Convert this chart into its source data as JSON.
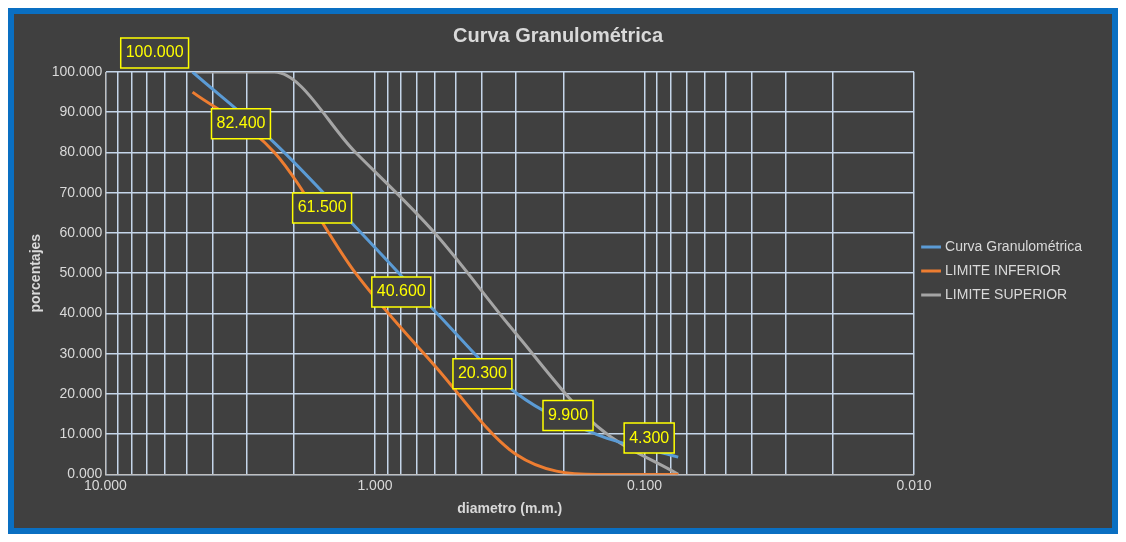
{
  "chart_data": {
    "type": "line",
    "title": "Curva Granulométrica",
    "xlabel": "diametro (m.m.)",
    "ylabel": "porcentajes",
    "log": "x",
    "xlim": [
      10,
      0.01
    ],
    "xticks": [
      {
        "value": 10,
        "label": "10.000"
      },
      {
        "value": 9,
        "label": null
      },
      {
        "value": 8,
        "label": null
      },
      {
        "value": 7,
        "label": null
      },
      {
        "value": 6,
        "label": null
      },
      {
        "value": 5,
        "label": null
      },
      {
        "value": 4,
        "label": null
      },
      {
        "value": 3,
        "label": null
      },
      {
        "value": 2,
        "label": null
      },
      {
        "value": 1,
        "label": "1.000"
      },
      {
        "value": 0.9,
        "label": null
      },
      {
        "value": 0.8,
        "label": null
      },
      {
        "value": 0.7,
        "label": null
      },
      {
        "value": 0.6,
        "label": null
      },
      {
        "value": 0.5,
        "label": null
      },
      {
        "value": 0.4,
        "label": null
      },
      {
        "value": 0.3,
        "label": null
      },
      {
        "value": 0.2,
        "label": null
      },
      {
        "value": 0.1,
        "label": "0.100"
      },
      {
        "value": 0.09,
        "label": null
      },
      {
        "value": 0.08,
        "label": null
      },
      {
        "value": 0.07,
        "label": null
      },
      {
        "value": 0.06,
        "label": null
      },
      {
        "value": 0.05,
        "label": null
      },
      {
        "value": 0.04,
        "label": null
      },
      {
        "value": 0.03,
        "label": null
      },
      {
        "value": 0.02,
        "label": null
      },
      {
        "value": 0.01,
        "label": "0.010"
      }
    ],
    "ylim": [
      0,
      100
    ],
    "yticks": [
      {
        "value": 0,
        "label": "0.000"
      },
      {
        "value": 10,
        "label": "10.000"
      },
      {
        "value": 20,
        "label": "20.000"
      },
      {
        "value": 30,
        "label": "30.000"
      },
      {
        "value": 40,
        "label": "40.000"
      },
      {
        "value": 50,
        "label": "50.000"
      },
      {
        "value": 60,
        "label": "60.000"
      },
      {
        "value": 70,
        "label": "70.000"
      },
      {
        "value": 80,
        "label": "80.000"
      },
      {
        "value": 90,
        "label": "90.000"
      },
      {
        "value": 100,
        "label": "100.000"
      }
    ],
    "x": [
      4.75,
      2.36,
      1.18,
      0.6,
      0.3,
      0.15,
      0.075
    ],
    "series": [
      {
        "name": "Curva Granulométrica",
        "color": "#5b9bd5",
        "values": [
          100,
          82.4,
          61.5,
          40.6,
          20.3,
          9.9,
          4.3
        ],
        "value_labels": [
          "100.000",
          "82.400",
          "61.500",
          "40.600",
          "20.300",
          "9.900",
          "4.300"
        ]
      },
      {
        "name": "LIMITE INFERIOR",
        "color": "#ed7d31",
        "values": [
          95,
          80,
          50,
          27,
          5,
          0,
          0
        ]
      },
      {
        "name": "LIMITE SUPERIOR",
        "color": "#a5a5a5",
        "values": [
          100,
          100,
          80,
          60,
          35,
          12,
          0
        ]
      }
    ],
    "grid": true,
    "legend": "right",
    "marker": "none",
    "line_style": "solid"
  }
}
